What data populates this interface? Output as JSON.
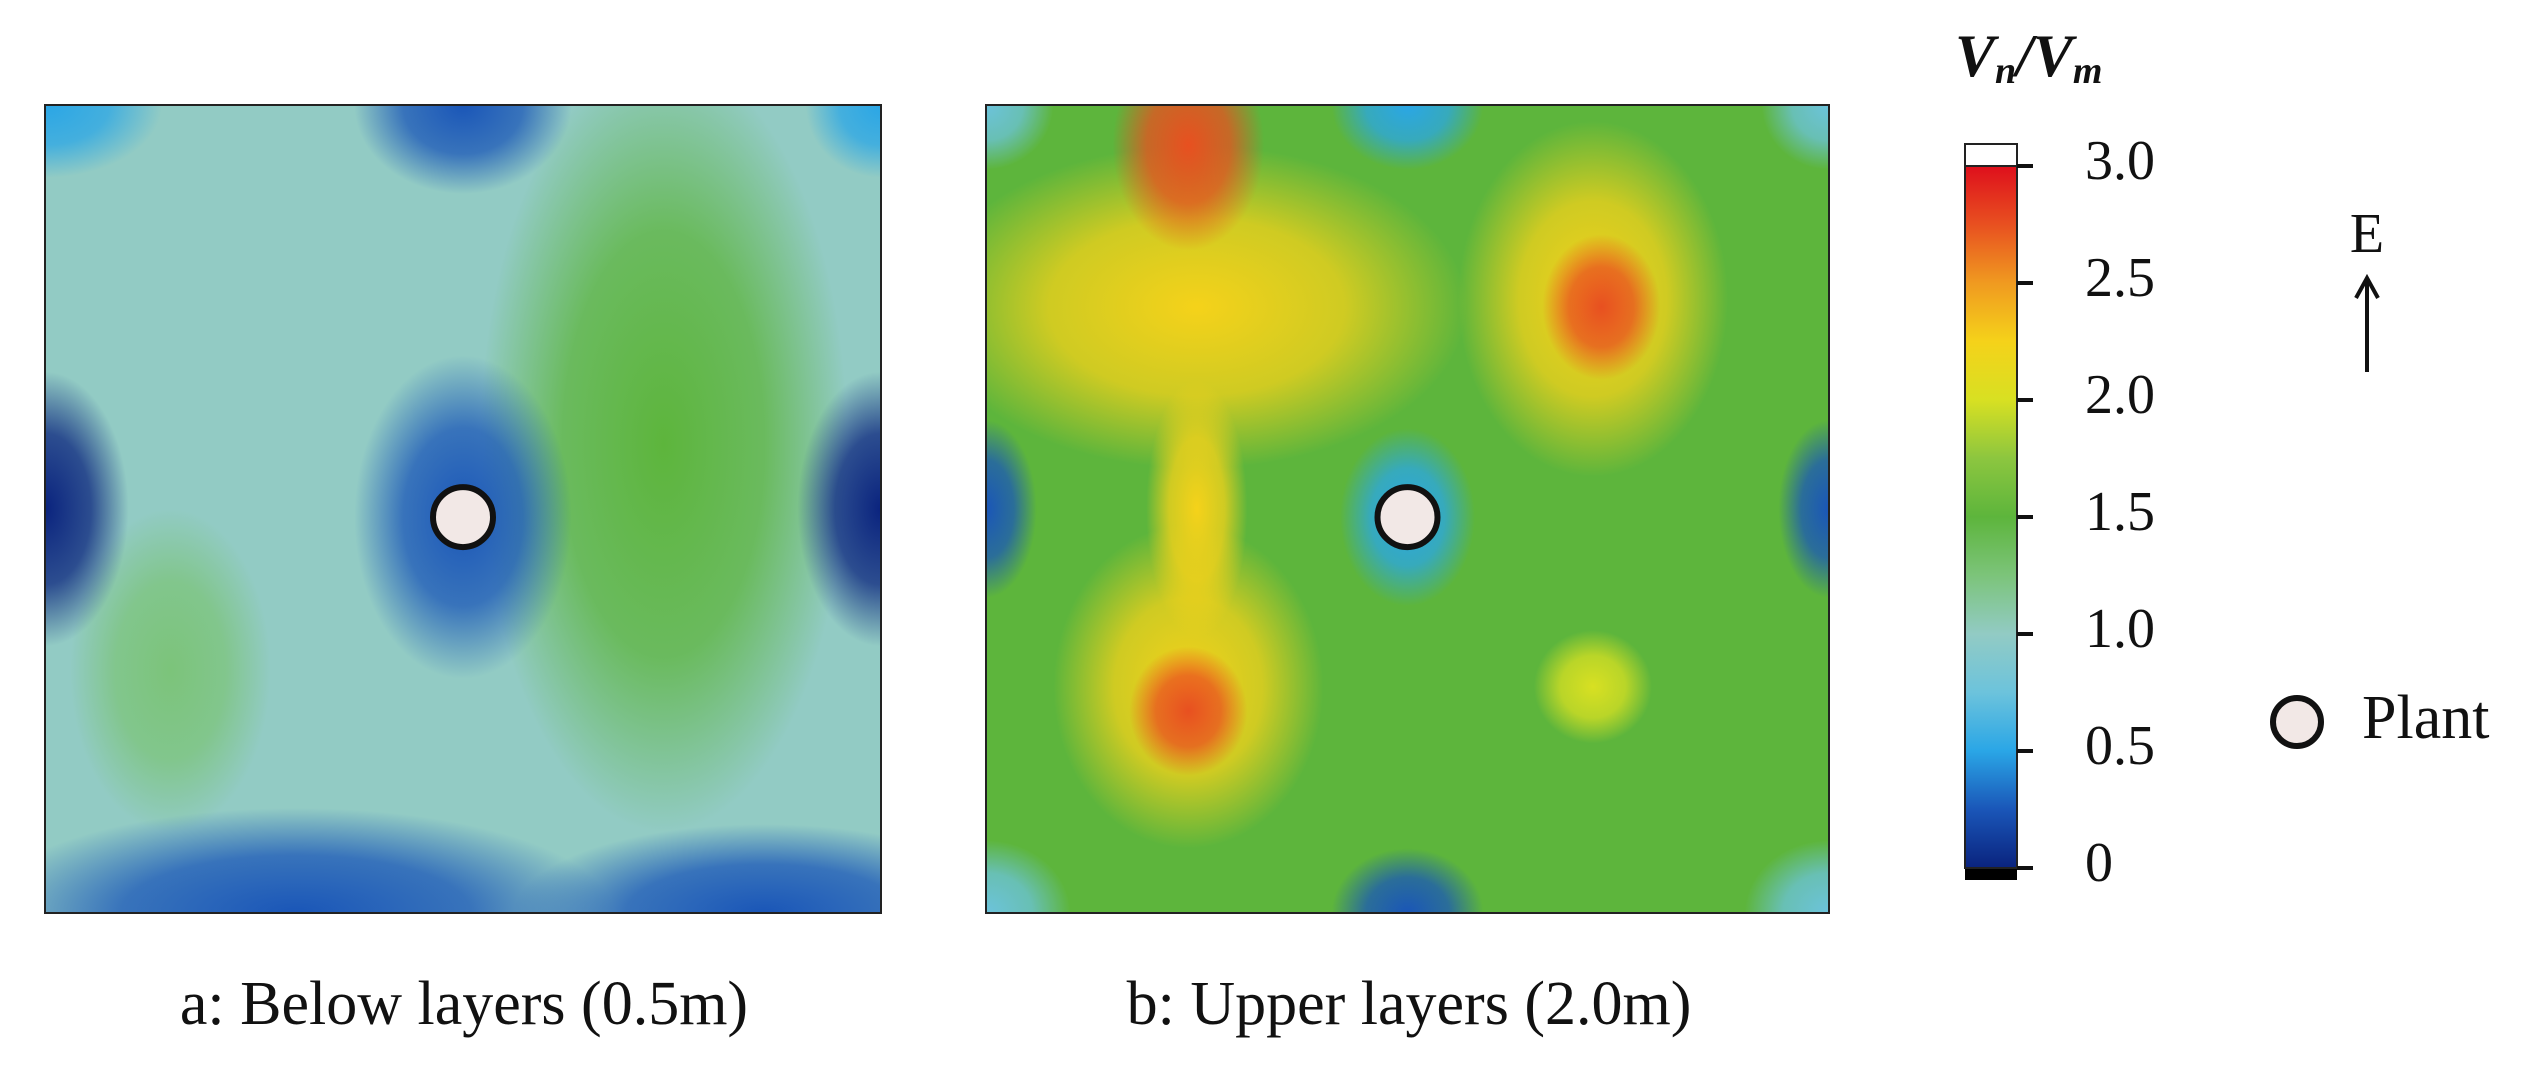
{
  "chart_data": [
    {
      "type": "contour",
      "caption": "a: Below layers (0.5m)"
    },
    {
      "type": "contour",
      "caption": "b: Upper layers (2.0m)"
    }
  ],
  "colorbar": {
    "title": [
      "V",
      "n",
      "/V",
      "m"
    ],
    "zlim": [
      0,
      3
    ],
    "zticks": [
      0,
      0.5,
      {
        "value": 1,
        "label": "1.0"
      },
      1.5,
      {
        "value": 2,
        "label": "2.0"
      },
      2.5,
      {
        "value": 3,
        "label": "3.0"
      }
    ],
    "colormap": [
      "#0a237e",
      "#1a56b8",
      "#2aa6e6",
      "#6cc3dc",
      "#92cbc4",
      "#7cc47a",
      "#5db53c",
      "#8cc63f",
      "#d8e022",
      "#f5d21a",
      "#f09a20",
      "#e85020",
      "#de0f1c"
    ]
  },
  "compass": {
    "label": "E"
  },
  "legend": {
    "label": "Plant"
  }
}
